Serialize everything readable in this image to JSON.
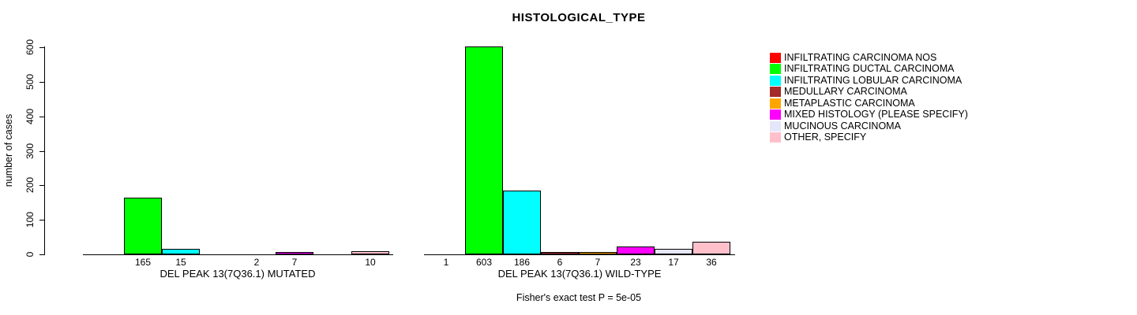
{
  "chart_data": {
    "type": "bar",
    "title": "HISTOLOGICAL_TYPE",
    "ylabel": "number of cases",
    "ylim": [
      0,
      600
    ],
    "yticks": [
      0,
      100,
      200,
      300,
      400,
      500,
      600
    ],
    "grid": false,
    "legend_position": "right",
    "categories": [
      "INFILTRATING CARCINOMA NOS",
      "INFILTRATING DUCTAL CARCINOMA",
      "INFILTRATING LOBULAR CARCINOMA",
      "MEDULLARY CARCINOMA",
      "METAPLASTIC CARCINOMA",
      "MIXED HISTOLOGY (PLEASE SPECIFY)",
      "MUCINOUS CARCINOMA",
      "OTHER, SPECIFY"
    ],
    "colors": [
      "#FF0000",
      "#00FF00",
      "#00FFFF",
      "#A52A2A",
      "#FFA500",
      "#FF00FF",
      "#E6E6FA",
      "#FFC0CB"
    ],
    "groups": [
      {
        "label": "DEL PEAK 13(7Q36.1) MUTATED",
        "values": [
          null,
          165,
          15,
          null,
          2,
          7,
          null,
          10
        ]
      },
      {
        "label": "DEL PEAK 13(7Q36.1) WILD-TYPE",
        "values": [
          1,
          603,
          186,
          6,
          7,
          23,
          17,
          36
        ]
      }
    ],
    "annotation": "Fisher's exact test P = 5e-05"
  }
}
